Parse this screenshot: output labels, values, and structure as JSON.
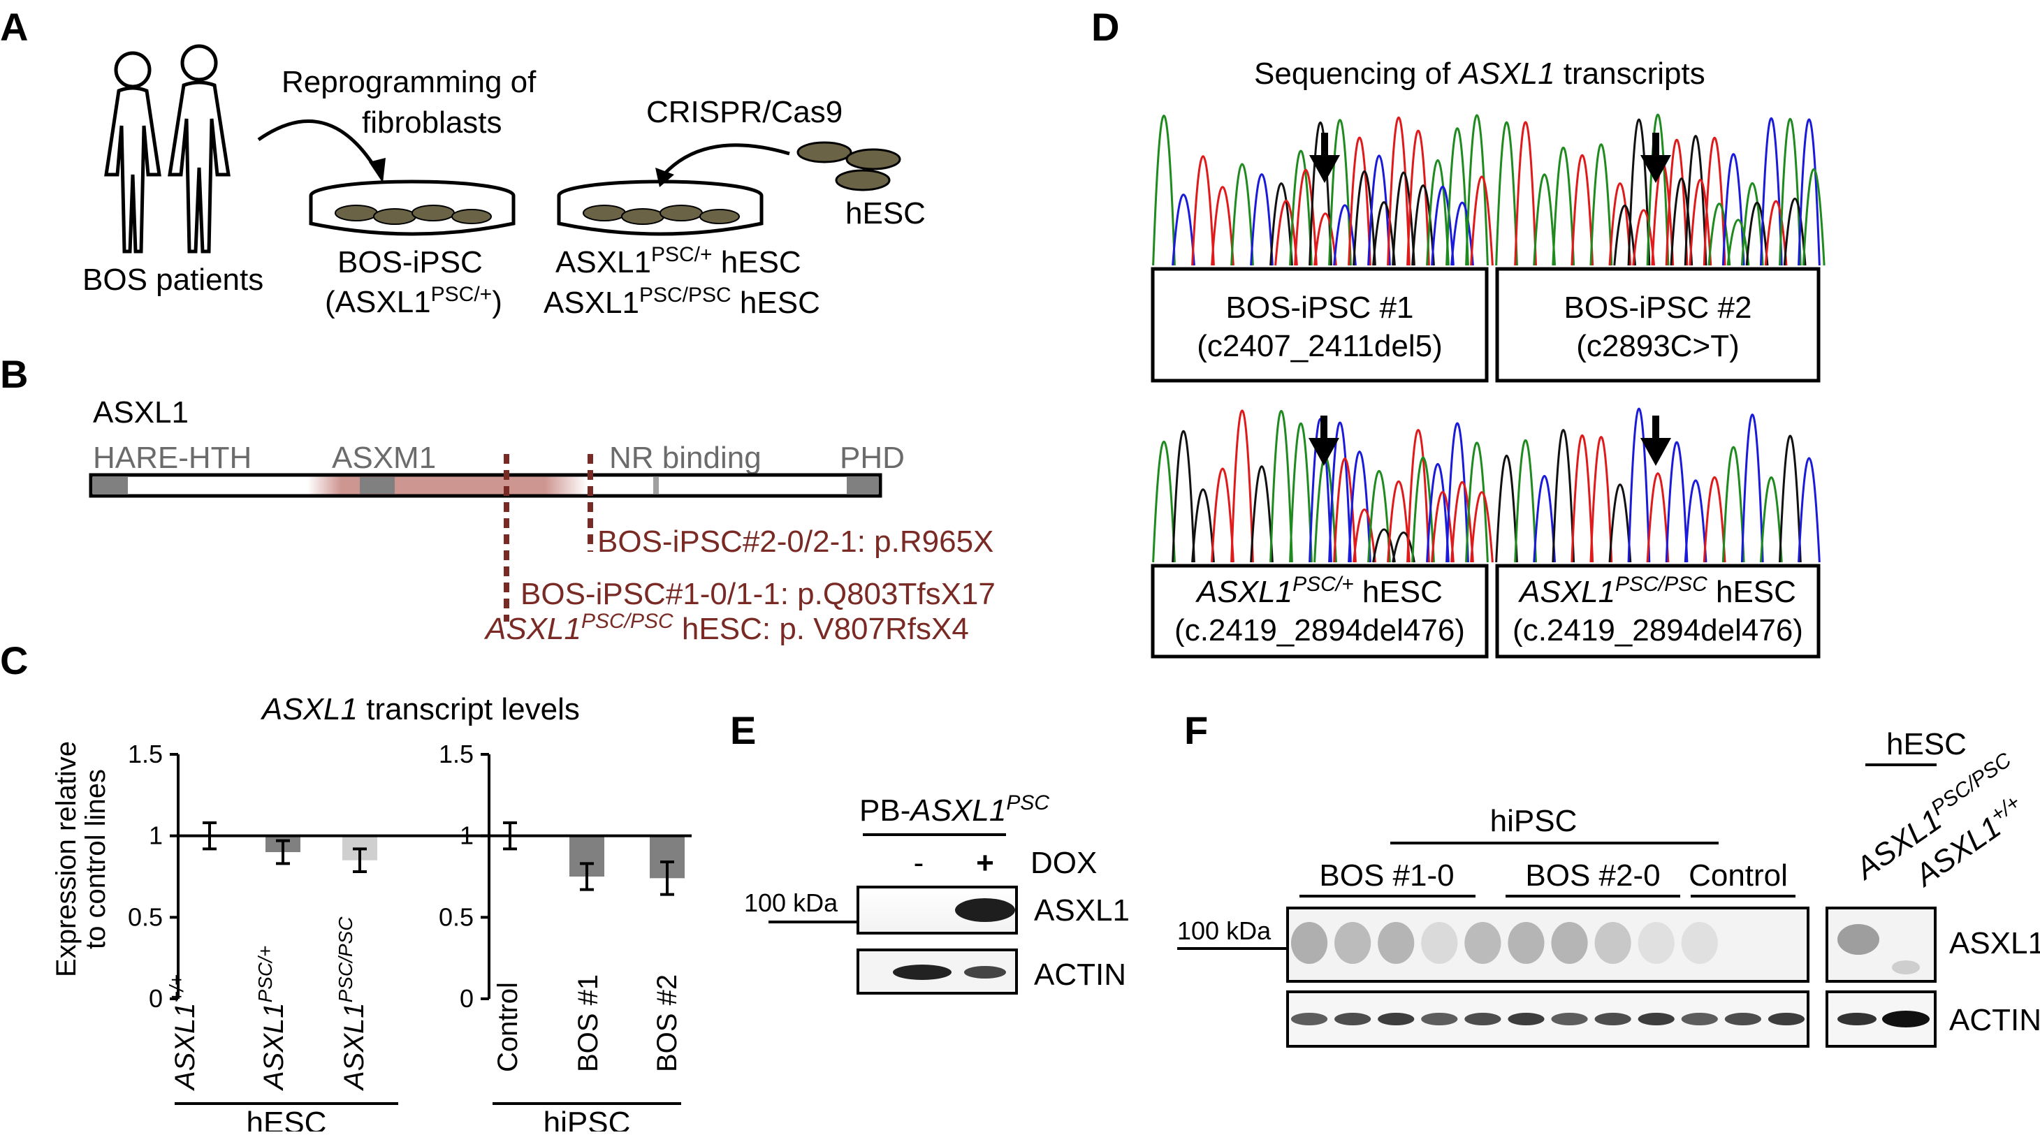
{
  "panels": {
    "A": {
      "letter": "A",
      "patients_label": "BOS patients",
      "reprogramming_label": [
        "Reprogramming of",
        "fibroblasts"
      ],
      "crispr_label": "CRISPR/Cas9",
      "hesc_label": "hESC",
      "bos_ipsc_label": "BOS-iPSC",
      "bos_ipsc_genotype": {
        "pre": "(ASXL1",
        "sup": "PSC/+",
        "post": ")"
      },
      "edited_line_1": {
        "pre": "ASXL1",
        "sup": "PSC/+",
        "post": " hESC"
      },
      "edited_line_2": {
        "pre": "ASXL1",
        "sup": "PSC/PSC",
        "post": " hESC"
      }
    },
    "B": {
      "letter": "B",
      "protein_name": "ASXL1",
      "domains": [
        "HARE-HTH",
        "ASXM1",
        "NR binding",
        "PHD"
      ],
      "mutation_1": "BOS-iPSC#2-0/2-1: p.R965X",
      "mutation_2": "BOS-iPSC#1-0/1-1: p.Q803TfsX17",
      "mutation_3": {
        "gene": "ASXL1",
        "sup": "PSC/PSC",
        "rest": " hESC: p. V807RfsX4"
      },
      "colors": {
        "mutation": "#7a2a24",
        "region": "#c98a85",
        "domain": "#808080"
      }
    },
    "C": {
      "letter": "C",
      "title_gene": "ASXL1",
      "title_rest": " transcript levels",
      "ylabel_line1": "Expression relative",
      "ylabel_line2": "to control lines",
      "group_labels": [
        "hESC",
        "hiPSC"
      ],
      "category_sups": [
        "+/+",
        "PSC/+",
        "PSC/PSC"
      ]
    },
    "D": {
      "letter": "D",
      "title_pre": "Sequencing of ",
      "title_gene": "ASXL1",
      "title_post": " transcripts",
      "boxes": [
        {
          "line1": "BOS-iPSC #1",
          "line2": "(c2407_2411del5)"
        },
        {
          "line1": "BOS-iPSC #2",
          "line2": "(c2893C>T)"
        },
        {
          "gene": "ASXL1",
          "sup": "PSC/+",
          "rest": " hESC",
          "line2": "(c.2419_2894del476)"
        },
        {
          "gene": "ASXL1",
          "sup": "PSC/PSC",
          "rest": " hESC",
          "line2": "(c.2419_2894del476)"
        }
      ],
      "trace_colors": {
        "A": "#1f8a1f",
        "C": "#1a1adb",
        "G": "#111111",
        "T": "#e01a1a"
      }
    },
    "E": {
      "letter": "E",
      "construct_pre": "PB-",
      "construct_gene": "ASXL1",
      "construct_sup": "PSC",
      "lane_labels": [
        "-",
        "+"
      ],
      "dox_label": "DOX",
      "marker": "100 kDa",
      "blots": [
        "ASXL1",
        "ACTIN"
      ]
    },
    "F": {
      "letter": "F",
      "hipsc_label": "hiPSC",
      "hesc_label": "hESC",
      "groups": [
        "BOS #1-0",
        "BOS #2-0",
        "Control"
      ],
      "hesc_lane_gene": "ASXL1",
      "hesc_lane_sups": [
        "PSC/PSC",
        "+/+"
      ],
      "marker": "100 kDa",
      "blots": [
        "ASXL1",
        "ACTIN"
      ]
    }
  },
  "chart_data": [
    {
      "type": "bar",
      "group": "hESC",
      "categories": [
        "ASXL1+/+",
        "ASXL1PSC/+",
        "ASXL1PSC/PSC"
      ],
      "values": [
        1.0,
        0.9,
        0.85
      ],
      "errors": [
        0.08,
        0.07,
        0.07
      ],
      "colors": [
        "#808080",
        "#808080",
        "#cfcfcf"
      ],
      "ylim": [
        0,
        1.5
      ],
      "yticks": [
        "0",
        "0.5",
        "1",
        "1.5"
      ],
      "ylabel": "Expression relative to control lines"
    },
    {
      "type": "bar",
      "group": "hiPSC",
      "categories": [
        "Control",
        "BOS #1",
        "BOS #2"
      ],
      "values": [
        1.0,
        0.75,
        0.74
      ],
      "errors": [
        0.08,
        0.08,
        0.1
      ],
      "colors": [
        "#808080",
        "#808080",
        "#808080"
      ],
      "ylim": [
        0,
        1.5
      ],
      "yticks": [
        "0",
        "0.5",
        "1",
        "1.5"
      ]
    }
  ]
}
